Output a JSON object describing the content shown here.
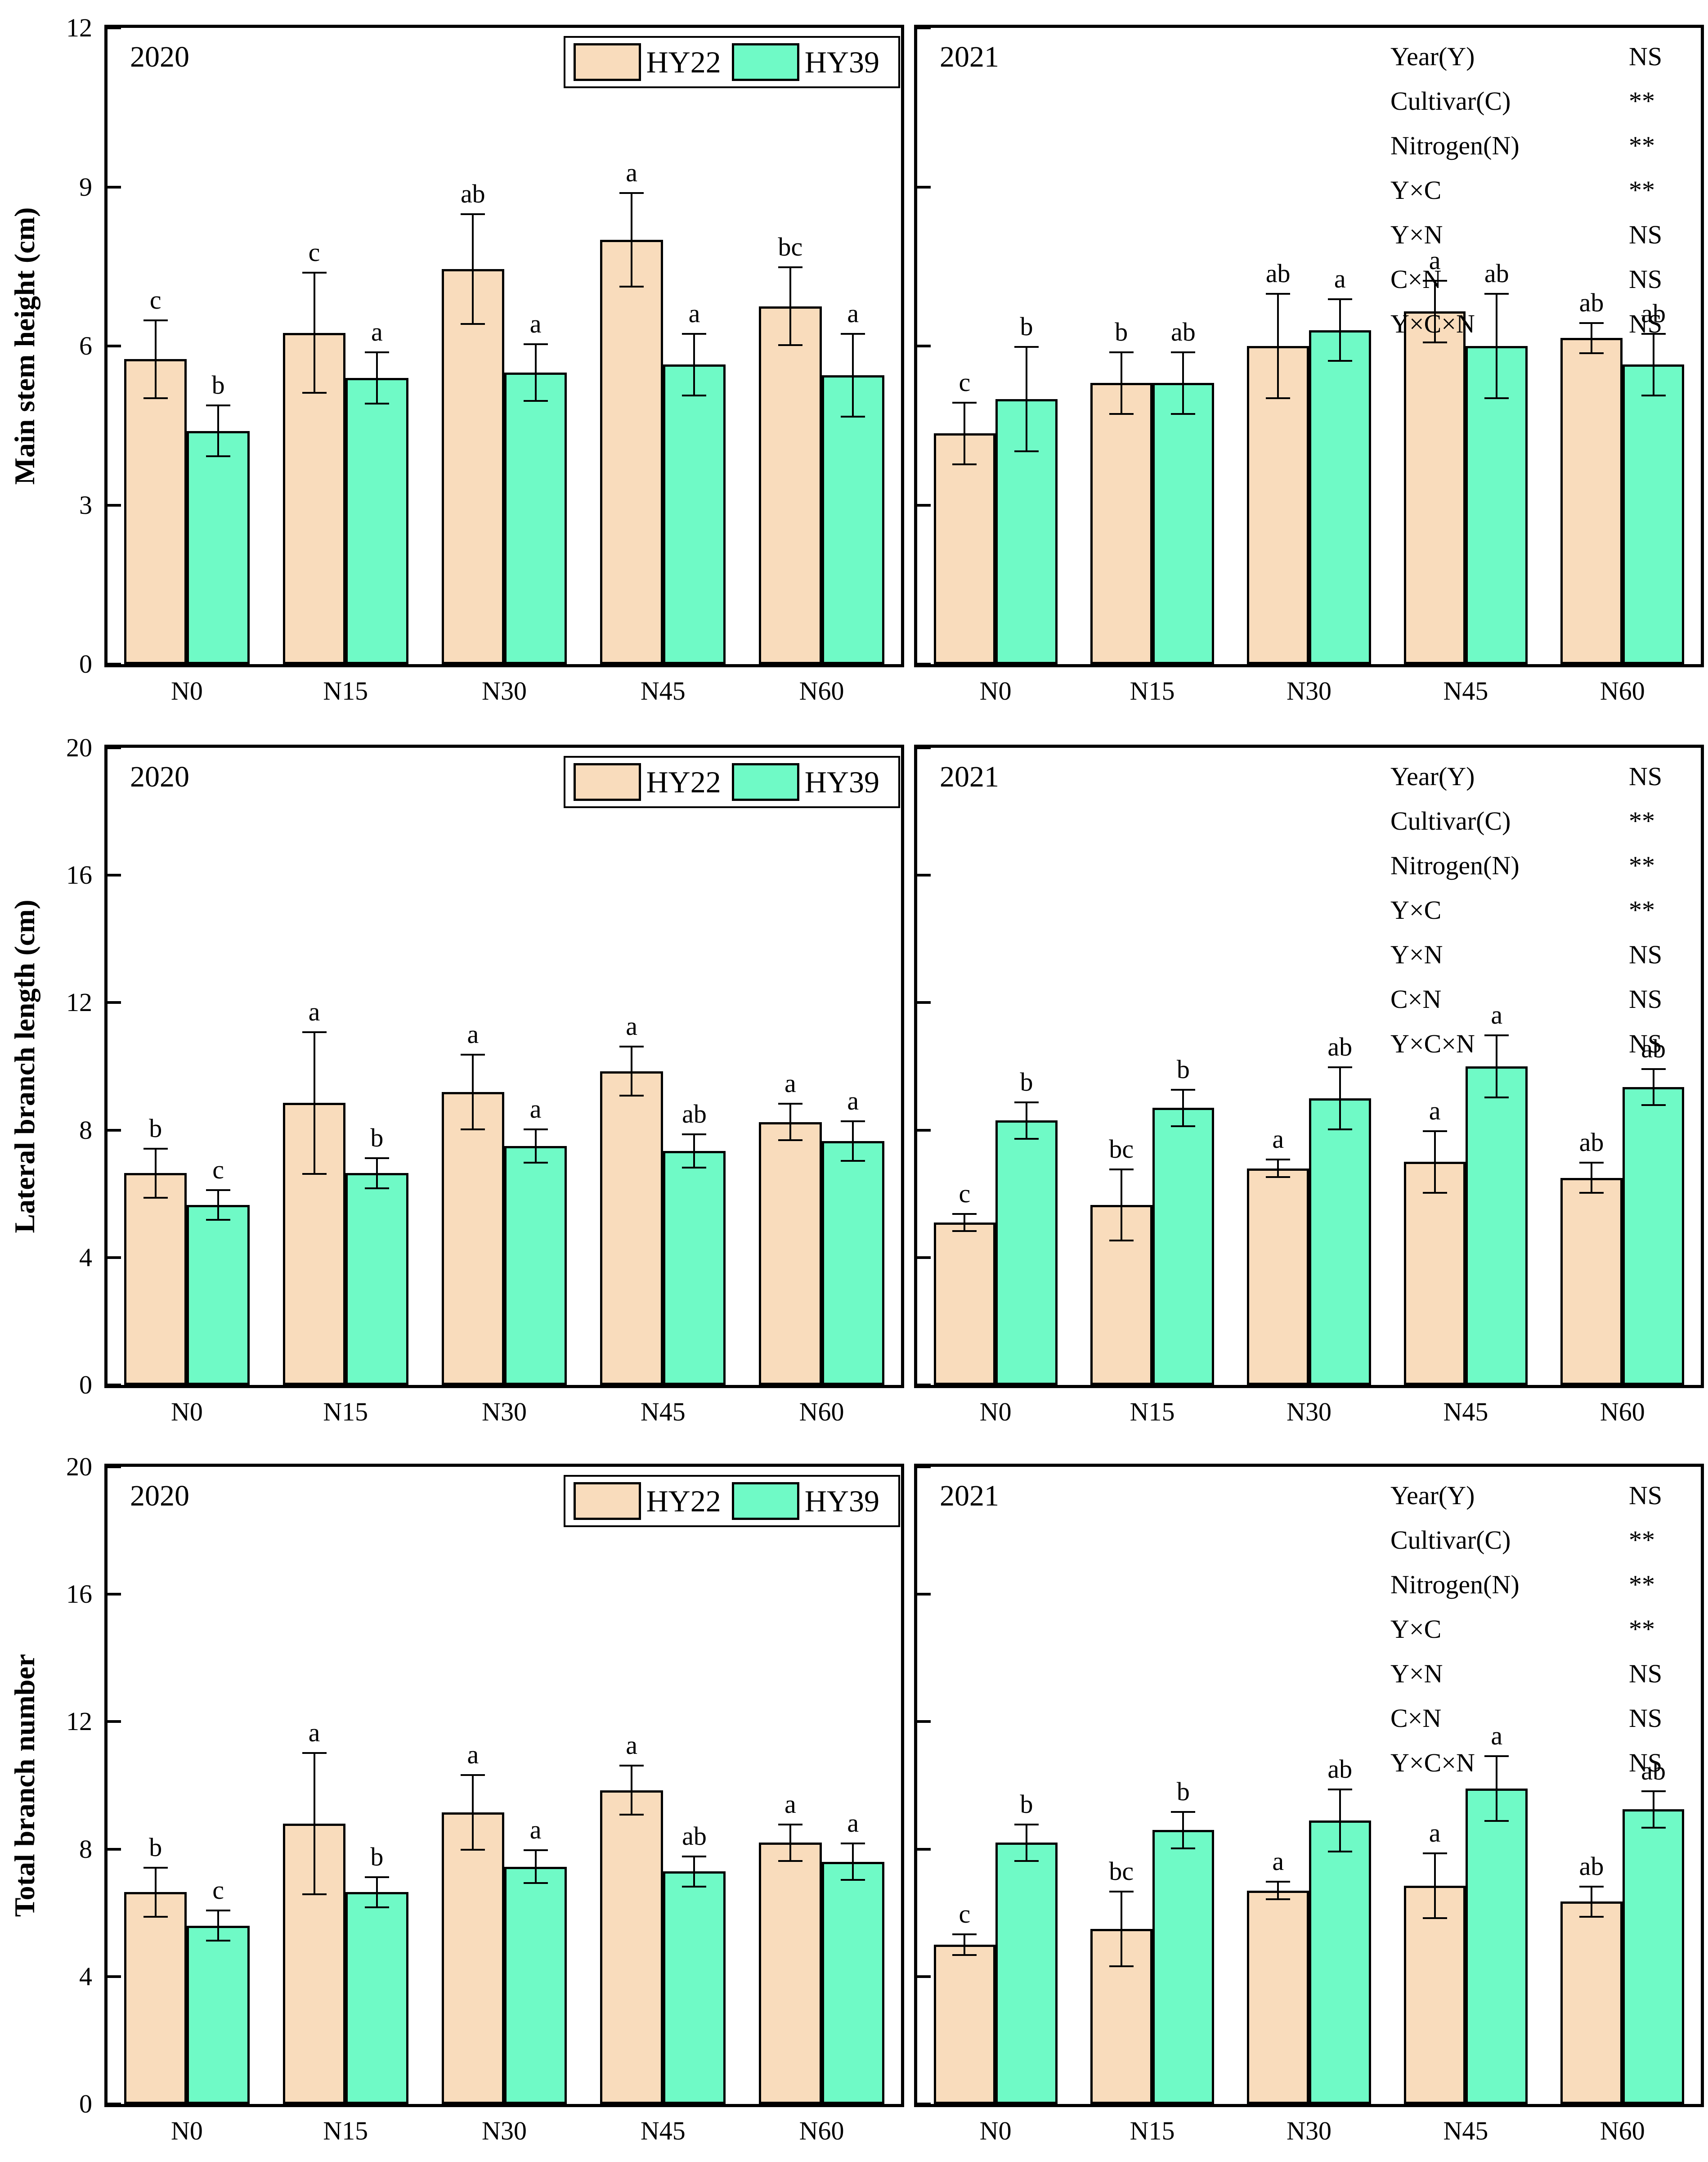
{
  "figure": {
    "colors": {
      "hy22": "#f9dcbc",
      "hy39": "#6ffac6",
      "axis": "#000000",
      "background": "#ffffff"
    },
    "legend": {
      "labels": [
        "HY22",
        "HY39"
      ]
    },
    "anova": {
      "labels": [
        "Year(Y)",
        "Cultivar(C)",
        "Nitrogen(N)",
        "Y×C",
        "Y×N",
        "C×N",
        "Y×C×N"
      ],
      "values": [
        "NS",
        "**",
        "**",
        "**",
        "NS",
        "NS",
        "NS"
      ]
    }
  },
  "chart_data": [
    {
      "type": "bar",
      "ylabel": "Main stem height (cm)",
      "ylim": [
        0,
        12
      ],
      "yticks": [
        0,
        3,
        6,
        9,
        12
      ],
      "categories": [
        "N0",
        "N15",
        "N30",
        "N45",
        "N60"
      ],
      "legend_position": "top-right-of-left-panel",
      "grid": false,
      "panels": [
        {
          "year": "2020",
          "series": [
            {
              "name": "HY22",
              "values": [
                5.75,
                6.25,
                7.45,
                8.0,
                6.75
              ],
              "errors": [
                0.75,
                1.15,
                1.05,
                0.9,
                0.75
              ],
              "letters": [
                "c",
                "c",
                "ab",
                "a",
                "bc"
              ]
            },
            {
              "name": "HY39",
              "values": [
                4.4,
                5.4,
                5.5,
                5.65,
                5.45
              ],
              "errors": [
                0.5,
                0.5,
                0.55,
                0.6,
                0.8
              ],
              "letters": [
                "b",
                "a",
                "a",
                "a",
                "a"
              ]
            }
          ]
        },
        {
          "year": "2021",
          "show_stats": true,
          "series": [
            {
              "name": "HY22",
              "values": [
                4.35,
                5.3,
                6.0,
                6.65,
                6.15
              ],
              "errors": [
                0.6,
                0.6,
                1.0,
                0.6,
                0.3
              ],
              "letters": [
                "c",
                "b",
                "ab",
                "a",
                "ab"
              ]
            },
            {
              "name": "HY39",
              "values": [
                5.0,
                5.3,
                6.3,
                6.0,
                5.65
              ],
              "errors": [
                1.0,
                0.6,
                0.6,
                1.0,
                0.6
              ],
              "letters": [
                "b",
                "ab",
                "a",
                "ab",
                "ab"
              ]
            }
          ]
        }
      ]
    },
    {
      "type": "bar",
      "ylabel": "Lateral branch length (cm)",
      "ylim": [
        0,
        20
      ],
      "yticks": [
        0,
        4,
        8,
        12,
        16,
        20
      ],
      "categories": [
        "N0",
        "N15",
        "N30",
        "N45",
        "N60"
      ],
      "legend_position": "top-right-of-left-panel",
      "grid": false,
      "panels": [
        {
          "year": "2020",
          "series": [
            {
              "name": "HY22",
              "values": [
                6.65,
                8.85,
                9.2,
                9.85,
                8.25
              ],
              "errors": [
                0.8,
                2.25,
                1.2,
                0.8,
                0.6
              ],
              "letters": [
                "b",
                "a",
                "a",
                "a",
                "a"
              ]
            },
            {
              "name": "HY39",
              "values": [
                5.65,
                6.65,
                7.5,
                7.35,
                7.65
              ],
              "errors": [
                0.5,
                0.5,
                0.55,
                0.55,
                0.65
              ],
              "letters": [
                "c",
                "b",
                "a",
                "ab",
                "a"
              ]
            }
          ]
        },
        {
          "year": "2021",
          "show_stats": true,
          "series": [
            {
              "name": "HY22",
              "values": [
                5.1,
                5.65,
                6.8,
                7.0,
                6.5
              ],
              "errors": [
                0.3,
                1.15,
                0.3,
                1.0,
                0.5
              ],
              "letters": [
                "c",
                "bc",
                "a",
                "a",
                "ab"
              ]
            },
            {
              "name": "HY39",
              "values": [
                8.3,
                8.7,
                9.0,
                10.0,
                9.35
              ],
              "errors": [
                0.6,
                0.6,
                1.0,
                1.0,
                0.6
              ],
              "letters": [
                "b",
                "b",
                "ab",
                "a",
                "ab"
              ]
            }
          ]
        }
      ]
    },
    {
      "type": "bar",
      "ylabel": "Total branch number",
      "ylim": [
        0,
        20
      ],
      "yticks": [
        0,
        4,
        8,
        12,
        16,
        20
      ],
      "categories": [
        "N0",
        "N15",
        "N30",
        "N45",
        "N60"
      ],
      "legend_position": "top-right-of-left-panel",
      "grid": false,
      "panels": [
        {
          "year": "2020",
          "series": [
            {
              "name": "HY22",
              "values": [
                6.65,
                8.8,
                9.15,
                9.85,
                8.2
              ],
              "errors": [
                0.8,
                2.25,
                1.2,
                0.8,
                0.6
              ],
              "letters": [
                "b",
                "a",
                "a",
                "a",
                "a"
              ]
            },
            {
              "name": "HY39",
              "values": [
                5.6,
                6.65,
                7.45,
                7.3,
                7.6
              ],
              "errors": [
                0.5,
                0.5,
                0.55,
                0.5,
                0.6
              ],
              "letters": [
                "c",
                "b",
                "a",
                "ab",
                "a"
              ]
            }
          ]
        },
        {
          "year": "2021",
          "show_stats": true,
          "series": [
            {
              "name": "HY22",
              "values": [
                5.0,
                5.5,
                6.7,
                6.85,
                6.35
              ],
              "errors": [
                0.35,
                1.2,
                0.3,
                1.05,
                0.5
              ],
              "letters": [
                "c",
                "bc",
                "a",
                "a",
                "ab"
              ]
            },
            {
              "name": "HY39",
              "values": [
                8.2,
                8.6,
                8.9,
                9.9,
                9.25
              ],
              "errors": [
                0.6,
                0.6,
                1.0,
                1.05,
                0.6
              ],
              "letters": [
                "b",
                "b",
                "ab",
                "a",
                "ab"
              ]
            }
          ]
        }
      ]
    }
  ]
}
